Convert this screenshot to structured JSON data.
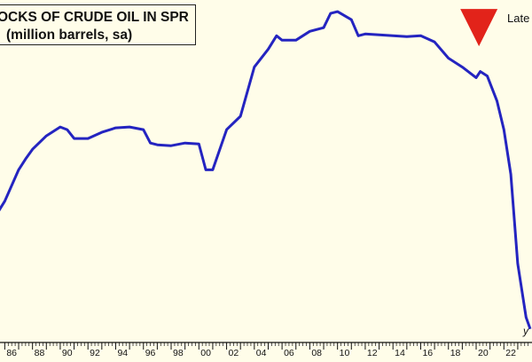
{
  "chart_data": {
    "type": "line",
    "title": "STOCKS OF CRUDE OIL IN SPR",
    "title_visible": "OCKS OF CRUDE OIL IN SPR",
    "subtitle": "(million barrels, sa)",
    "note": "Late",
    "xlabel_visible": "y",
    "x_tick_labels": [
      "86",
      "88",
      "90",
      "92",
      "94",
      "96",
      "98",
      "00",
      "02",
      "04",
      "06",
      "08",
      "10",
      "12",
      "14",
      "16",
      "18",
      "20",
      "22"
    ],
    "xlim": [
      1985.4,
      2023.9
    ],
    "ylim": [
      330,
      735
    ],
    "grid": false,
    "legend": "none",
    "colors": {
      "line": "#2424c0",
      "marker": "#e2231a",
      "background": "#fffde9"
    },
    "marker": {
      "shape": "triangle-down",
      "x": 2020.2,
      "y": 725
    },
    "series": [
      {
        "x": [
          1985.4,
          1986.0,
          1987.0,
          1987.5,
          1988.0,
          1989.0,
          1990.0,
          1990.5,
          1991.0,
          1992.0,
          1993.0,
          1994.0,
          1995.0,
          1996.0,
          1996.5,
          1997.0,
          1998.0,
          1999.0,
          2000.0,
          2000.5,
          2001.0,
          2002.0,
          2003.0,
          2004.0,
          2005.0,
          2005.6,
          2006.0,
          2007.0,
          2008.0,
          2009.0,
          2009.5,
          2010.0,
          2011.0,
          2011.5,
          2012.0,
          2013.0,
          2014.0,
          2015.0,
          2016.0,
          2017.0,
          2018.0,
          2019.0,
          2020.0,
          2020.3,
          2020.8,
          2021.5,
          2022.0,
          2022.5,
          2023.0,
          2023.6,
          2023.9
        ],
        "y": [
          495,
          510,
          545,
          557,
          568,
          583,
          593,
          590,
          580,
          580,
          587,
          592,
          593,
          590,
          575,
          573,
          572,
          575,
          574,
          545,
          545,
          590,
          605,
          660,
          680,
          695,
          690,
          690,
          700,
          704,
          720,
          722,
          713,
          695,
          697,
          696,
          695,
          694,
          695,
          688,
          670,
          660,
          648,
          655,
          650,
          622,
          590,
          540,
          440,
          380,
          367
        ]
      }
    ]
  }
}
